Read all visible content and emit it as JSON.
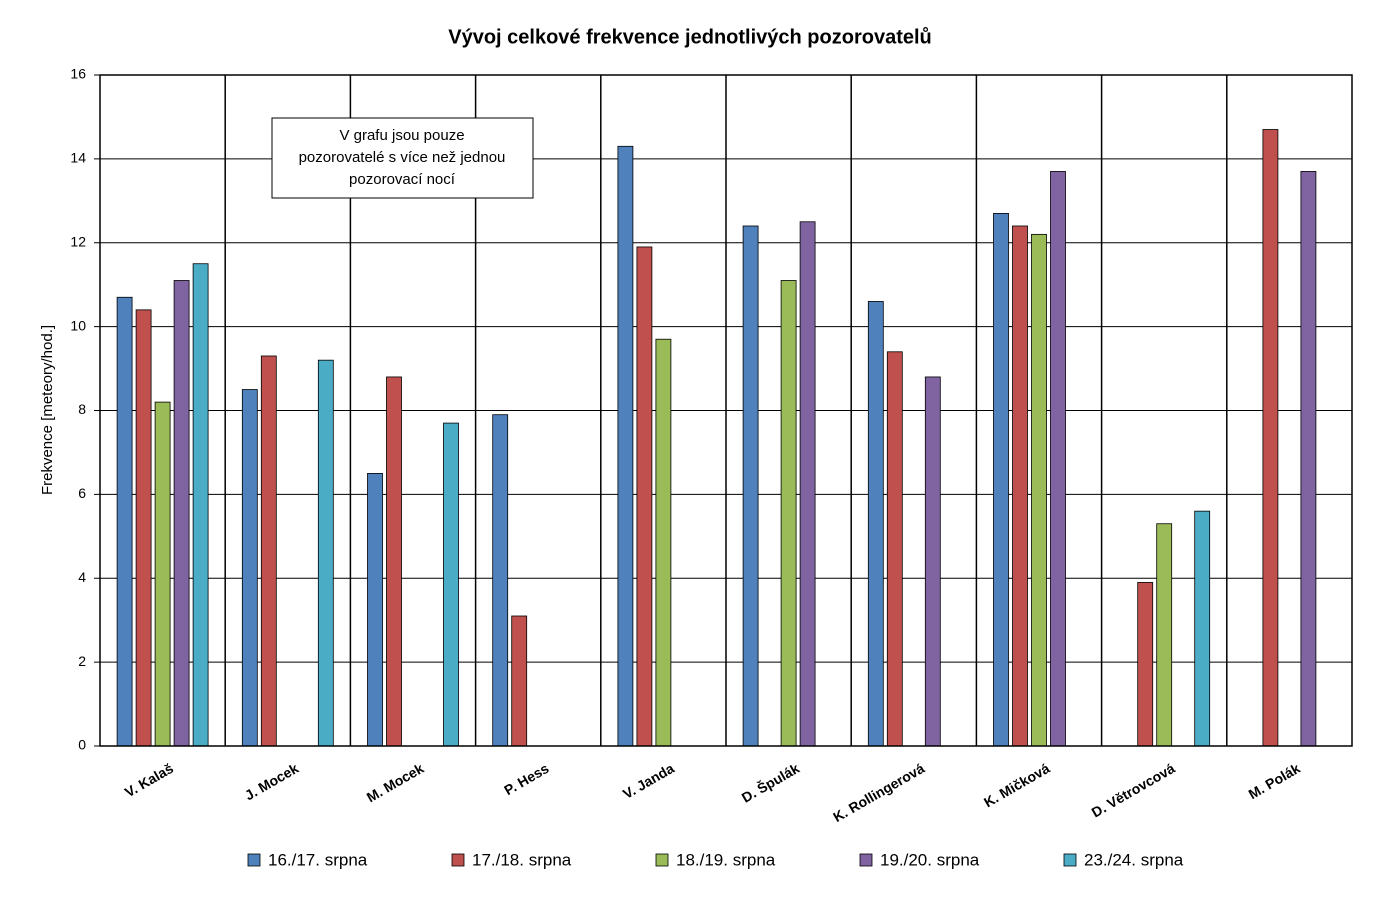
{
  "chart_data": {
    "type": "bar",
    "title": "Vývoj celkové frekvence jednotlivých pozorovatelů",
    "y_label": "Frekvence [meteory/hod.]",
    "annotation": [
      "V grafu jsou pouze",
      "pozorovatelé s více než jednou",
      "pozorovací nocí"
    ],
    "categories": [
      "V. Kalaš",
      "J. Mocek",
      "M. Mocek",
      "P. Hess",
      "V. Janda",
      "D. Špulák",
      "K. Rollingerová",
      "K. Mičková",
      "D. Větrovcová",
      "M. Polák"
    ],
    "series": [
      {
        "name": "16./17. srpna",
        "color": "#4f81bd",
        "values": [
          10.7,
          8.5,
          6.5,
          7.9,
          14.3,
          12.4,
          10.6,
          12.7,
          null,
          null
        ]
      },
      {
        "name": "17./18. srpna",
        "color": "#c0504d",
        "values": [
          10.4,
          9.3,
          8.8,
          3.1,
          11.9,
          null,
          9.4,
          12.4,
          3.9,
          14.7
        ]
      },
      {
        "name": "18./19. srpna",
        "color": "#9bbb59",
        "values": [
          8.2,
          null,
          null,
          null,
          9.7,
          11.1,
          null,
          12.2,
          5.3,
          null
        ]
      },
      {
        "name": "19./20. srpna",
        "color": "#8064a2",
        "values": [
          11.1,
          null,
          null,
          null,
          null,
          12.5,
          8.8,
          13.7,
          null,
          13.7
        ]
      },
      {
        "name": "23./24. srpna",
        "color": "#4bacc6",
        "values": [
          11.5,
          9.2,
          7.7,
          null,
          null,
          null,
          null,
          null,
          5.6,
          null
        ]
      }
    ],
    "ylim": [
      0,
      16
    ],
    "yticks": [
      0,
      2,
      4,
      6,
      8,
      10,
      12,
      14,
      16
    ],
    "grid": true,
    "legend": "bottom"
  }
}
